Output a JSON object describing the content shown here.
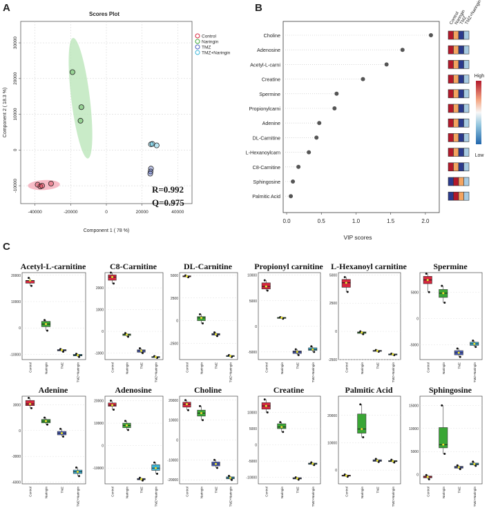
{
  "panels": {
    "a_label": "A",
    "b_label": "B",
    "c_label": "C"
  },
  "colors": {
    "control": "#d7263d",
    "naringin": "#3aa635",
    "tmz": "#4a5fc1",
    "tmz_naringin": "#3bb6d9",
    "ellipse_control": "#f4a6b4",
    "ellipse_naringin": "#b7e4b5",
    "mean_marker": "#f7ef2a"
  },
  "chart_data": [
    {
      "id": "scores",
      "type": "scatter",
      "title": "Scores Plot",
      "xlabel": "Component 1 ( 78 %)",
      "ylabel": "Component 2 ( 18.3 %)",
      "xlim": [
        -48000,
        48000
      ],
      "ylim": [
        -15000,
        36000
      ],
      "xticks": [
        -40000,
        -20000,
        0,
        20000,
        40000
      ],
      "yticks": [
        -10000,
        0,
        10000,
        20000,
        30000
      ],
      "legend": [
        "Control",
        "Naringin",
        "TMZ",
        "TMZ+Naringin"
      ],
      "legend_position": "top-right",
      "annotations": [
        "R=0.992",
        "Q=0.975"
      ],
      "series": [
        {
          "name": "Control",
          "points": [
            [
              -38500,
              -9700
            ],
            [
              -37000,
              -10200
            ],
            [
              -36000,
              -10000
            ],
            [
              -31000,
              -9400
            ]
          ]
        },
        {
          "name": "Naringin",
          "points": [
            [
              -19000,
              21800
            ],
            [
              -14000,
              12000
            ],
            [
              -14500,
              8200
            ]
          ]
        },
        {
          "name": "TMZ",
          "points": [
            [
              25000,
              -5200
            ],
            [
              24800,
              -6000
            ],
            [
              24600,
              -6600
            ]
          ]
        },
        {
          "name": "TMZ+Naringin",
          "points": [
            [
              25000,
              1600
            ],
            [
              25800,
              1700
            ],
            [
              28200,
              1300
            ]
          ]
        }
      ],
      "ellipses": [
        {
          "group": "Naringin",
          "cx": -14500,
          "cy": 14500,
          "rx": 5200,
          "ry": 17000,
          "rotate_deg": -7
        },
        {
          "group": "Control",
          "cx": -35000,
          "cy": -9800,
          "rx": 9000,
          "ry": 1400,
          "rotate_deg": -3
        }
      ]
    },
    {
      "id": "vip",
      "type": "scatter",
      "xlabel": "VIP scores",
      "xlim": [
        -0.05,
        2.2
      ],
      "xticks": [
        0.0,
        0.5,
        1.0,
        1.5,
        2.0
      ],
      "heatmap_columns": [
        "Control",
        "Naringin",
        "TMZ",
        "TMZ+Naringin"
      ],
      "colorbar": {
        "high_label": "High",
        "low_label": "Low"
      },
      "features": [
        {
          "name": "Choline",
          "vip": 2.08,
          "levels": [
            "high",
            "mid",
            "low",
            "lowmid"
          ]
        },
        {
          "name": "Adenosine",
          "vip": 1.67,
          "levels": [
            "high",
            "mid",
            "low",
            "lowmid"
          ]
        },
        {
          "name": "Acetyl-L-carni",
          "vip": 1.44,
          "levels": [
            "high",
            "mid",
            "low",
            "lowmid"
          ]
        },
        {
          "name": "Creatine",
          "vip": 1.1,
          "levels": [
            "high",
            "mid",
            "low",
            "lowmid"
          ]
        },
        {
          "name": "Spermine",
          "vip": 0.72,
          "levels": [
            "high",
            "mid",
            "low",
            "lowmid"
          ]
        },
        {
          "name": "Propionylcarni",
          "vip": 0.69,
          "levels": [
            "high",
            "mid",
            "low",
            "lowmid"
          ]
        },
        {
          "name": "Adenine",
          "vip": 0.47,
          "levels": [
            "high",
            "mid",
            "low",
            "lowmid"
          ]
        },
        {
          "name": "DL-Carnitine",
          "vip": 0.43,
          "levels": [
            "high",
            "mid",
            "low",
            "lowmid"
          ]
        },
        {
          "name": "L-Hexanoylcarn",
          "vip": 0.32,
          "levels": [
            "high",
            "mid",
            "low",
            "lowmid"
          ]
        },
        {
          "name": "C8-Carnitine",
          "vip": 0.17,
          "levels": [
            "high",
            "mid",
            "low",
            "lowmid"
          ]
        },
        {
          "name": "Sphingosine",
          "vip": 0.09,
          "levels": [
            "low",
            "high",
            "mid",
            "lowmid"
          ]
        },
        {
          "name": "Palmitic Acid",
          "vip": 0.06,
          "levels": [
            "low",
            "high",
            "mid",
            "lowmid"
          ]
        }
      ]
    },
    {
      "id": "boxplots",
      "type": "box",
      "groups": [
        "Control",
        "Naringin",
        "TMZ",
        "TMZ+Naringin"
      ],
      "panels": [
        {
          "title": "Acetyl-L-carnitine",
          "yticks": [
            20000,
            10000,
            0,
            -10000
          ],
          "ylim": [
            -12000,
            21000
          ],
          "boxes": [
            [
              16000,
              17000,
              18000,
              18000,
              19000
            ],
            [
              -1000,
              500,
              1500,
              2500,
              3000
            ],
            [
              -9000,
              -8700,
              -8400,
              -8200,
              -8000
            ],
            [
              -11000,
              -10600,
              -10300,
              -10000,
              -9800
            ]
          ]
        },
        {
          "title": "C8-Carnitine",
          "yticks": [
            2000,
            1000,
            0,
            -1000
          ],
          "ylim": [
            -1300,
            2700
          ],
          "boxes": [
            [
              2200,
              2350,
              2500,
              2600,
              2700
            ],
            [
              -250,
              -190,
              -150,
              -120,
              -80
            ],
            [
              -1000,
              -960,
              -900,
              -850,
              -780
            ],
            [
              -1220,
              -1200,
              -1180,
              -1160,
              -1140
            ]
          ]
        },
        {
          "title": "DL-Carnitine",
          "yticks": [
            5000,
            2500,
            0,
            -2500
          ],
          "ylim": [
            -4300,
            5300
          ],
          "boxes": [
            [
              4800,
              4860,
              4900,
              4950,
              5000
            ],
            [
              -300,
              0,
              300,
              450,
              700
            ],
            [
              -1700,
              -1600,
              -1500,
              -1420,
              -1300
            ],
            [
              -4000,
              -3950,
              -3900,
              -3850,
              -3800
            ]
          ]
        },
        {
          "title": "Propionyl carnitine",
          "yticks": [
            10000,
            5000,
            0,
            -5000
          ],
          "ylim": [
            -6500,
            10500
          ],
          "boxes": [
            [
              7000,
              7300,
              7800,
              8500,
              9000
            ],
            [
              1500,
              1600,
              1700,
              1750,
              1800
            ],
            [
              -5600,
              -5300,
              -5000,
              -4800,
              -4500
            ],
            [
              -5000,
              -4700,
              -4500,
              -4200,
              -3900
            ]
          ]
        },
        {
          "title": "L-Hexanoyl carnitine",
          "yticks": [
            5000,
            2500,
            0,
            -2500
          ],
          "ylim": [
            -2500,
            5200
          ],
          "boxes": [
            [
              3500,
              3900,
              4300,
              4600,
              4800
            ],
            [
              -250,
              -180,
              -100,
              -50,
              0
            ],
            [
              -1800,
              -1760,
              -1720,
              -1680,
              -1650
            ],
            [
              -2100,
              -2060,
              -2030,
              -2000,
              -1970
            ]
          ]
        },
        {
          "title": "Spermine",
          "yticks": [
            5000,
            0,
            -5000
          ],
          "ylim": [
            -7800,
            8700
          ],
          "boxes": [
            [
              5000,
              6600,
              7300,
              8000,
              8500
            ],
            [
              3000,
              4000,
              4800,
              5500,
              6200
            ],
            [
              -7300,
              -6900,
              -6500,
              -6100,
              -5700
            ],
            [
              -5400,
              -5100,
              -4800,
              -4500,
              -4200
            ]
          ]
        },
        {
          "title": "Adenine",
          "yticks": [
            3000,
            0,
            -3000,
            -6000
          ],
          "ylim": [
            -6200,
            4000
          ],
          "boxes": [
            [
              2600,
              2900,
              3100,
              3500,
              3800
            ],
            [
              700,
              900,
              1100,
              1300,
              1500
            ],
            [
              -700,
              -500,
              -300,
              -100,
              200
            ],
            [
              -5300,
              -5000,
              -4800,
              -4600,
              -4300
            ]
          ]
        },
        {
          "title": "Adenosine",
          "yticks": [
            20000,
            10000,
            0,
            -10000
          ],
          "ylim": [
            -17000,
            22000
          ],
          "boxes": [
            [
              16000,
              17500,
              18000,
              19000,
              20000
            ],
            [
              7000,
              8000,
              9000,
              10000,
              11000
            ],
            [
              -15500,
              -15200,
              -14900,
              -14600,
              -14300
            ],
            [
              -12500,
              -11000,
              -10000,
              -8500,
              -7500
            ]
          ]
        },
        {
          "title": "Choline",
          "yticks": [
            20000,
            10000,
            0,
            -10000,
            -20000
          ],
          "ylim": [
            -22000,
            22000
          ],
          "boxes": [
            [
              15000,
              16500,
              18000,
              19000,
              20000
            ],
            [
              10000,
              12000,
              13500,
              15000,
              17000
            ],
            [
              -14000,
              -13000,
              -12000,
              -11000,
              -10000
            ],
            [
              -20000,
              -19500,
              -19000,
              -18500,
              -18000
            ]
          ]
        },
        {
          "title": "Creatine",
          "yticks": [
            10000,
            5000,
            0,
            -5000,
            -10000
          ],
          "ylim": [
            -12000,
            15000
          ],
          "boxes": [
            [
              10000,
              11000,
              12000,
              13000,
              14000
            ],
            [
              4000,
              5000,
              5500,
              6500,
              7000
            ],
            [
              -10700,
              -10500,
              -10300,
              -10100,
              -10000
            ],
            [
              -6200,
              -6000,
              -5800,
              -5600,
              -5400
            ]
          ]
        },
        {
          "title": "Palmitic Acid",
          "yticks": [
            20000,
            10000,
            0
          ],
          "ylim": [
            -5000,
            27000
          ],
          "boxes": [
            [
              -2400,
              -2200,
              -2000,
              -1800,
              -1600
            ],
            [
              12000,
              13500,
              15000,
              20500,
              24000
            ],
            [
              3000,
              3200,
              3500,
              3800,
              4100
            ],
            [
              2800,
              3100,
              3300,
              3500,
              3800
            ]
          ]
        },
        {
          "title": "Sphingosine",
          "yticks": [
            15000,
            10000,
            5000,
            0
          ],
          "ylim": [
            -2000,
            17000
          ],
          "boxes": [
            [
              -1000,
              -700,
              -500,
              -300,
              -100
            ],
            [
              4500,
              5800,
              6500,
              10200,
              15000
            ],
            [
              1200,
              1400,
              1600,
              1800,
              2000
            ],
            [
              1900,
              2100,
              2300,
              2500,
              2800
            ]
          ]
        }
      ]
    }
  ]
}
